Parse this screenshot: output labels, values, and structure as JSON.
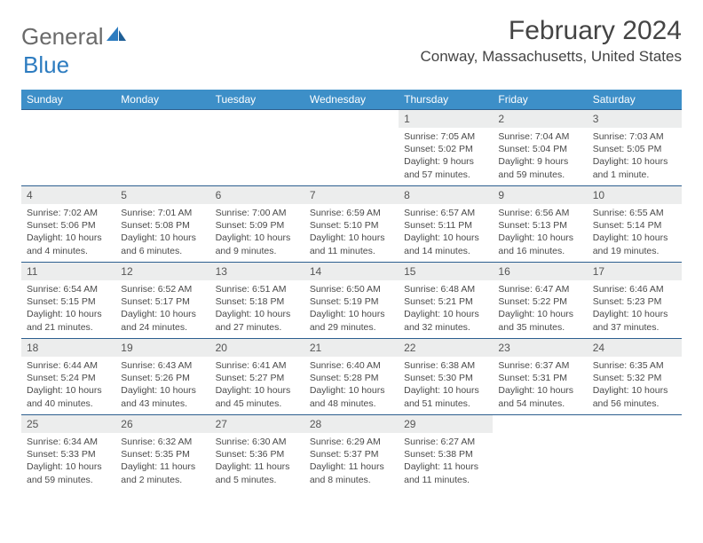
{
  "logo": {
    "word1": "General",
    "word2": "Blue"
  },
  "title": "February 2024",
  "location": "Conway, Massachusetts, United States",
  "colors": {
    "header_bg": "#3d8fc8",
    "header_text": "#ffffff",
    "row_border": "#2d5f8f",
    "daynum_bg": "#eceded",
    "text": "#4a4a4a",
    "logo_gray": "#6a6a6a",
    "logo_blue": "#2d7cc0"
  },
  "day_headers": [
    "Sunday",
    "Monday",
    "Tuesday",
    "Wednesday",
    "Thursday",
    "Friday",
    "Saturday"
  ],
  "weeks": [
    [
      null,
      null,
      null,
      null,
      {
        "n": "1",
        "sr": "Sunrise: 7:05 AM",
        "ss": "Sunset: 5:02 PM",
        "dl": "Daylight: 9 hours and 57 minutes."
      },
      {
        "n": "2",
        "sr": "Sunrise: 7:04 AM",
        "ss": "Sunset: 5:04 PM",
        "dl": "Daylight: 9 hours and 59 minutes."
      },
      {
        "n": "3",
        "sr": "Sunrise: 7:03 AM",
        "ss": "Sunset: 5:05 PM",
        "dl": "Daylight: 10 hours and 1 minute."
      }
    ],
    [
      {
        "n": "4",
        "sr": "Sunrise: 7:02 AM",
        "ss": "Sunset: 5:06 PM",
        "dl": "Daylight: 10 hours and 4 minutes."
      },
      {
        "n": "5",
        "sr": "Sunrise: 7:01 AM",
        "ss": "Sunset: 5:08 PM",
        "dl": "Daylight: 10 hours and 6 minutes."
      },
      {
        "n": "6",
        "sr": "Sunrise: 7:00 AM",
        "ss": "Sunset: 5:09 PM",
        "dl": "Daylight: 10 hours and 9 minutes."
      },
      {
        "n": "7",
        "sr": "Sunrise: 6:59 AM",
        "ss": "Sunset: 5:10 PM",
        "dl": "Daylight: 10 hours and 11 minutes."
      },
      {
        "n": "8",
        "sr": "Sunrise: 6:57 AM",
        "ss": "Sunset: 5:11 PM",
        "dl": "Daylight: 10 hours and 14 minutes."
      },
      {
        "n": "9",
        "sr": "Sunrise: 6:56 AM",
        "ss": "Sunset: 5:13 PM",
        "dl": "Daylight: 10 hours and 16 minutes."
      },
      {
        "n": "10",
        "sr": "Sunrise: 6:55 AM",
        "ss": "Sunset: 5:14 PM",
        "dl": "Daylight: 10 hours and 19 minutes."
      }
    ],
    [
      {
        "n": "11",
        "sr": "Sunrise: 6:54 AM",
        "ss": "Sunset: 5:15 PM",
        "dl": "Daylight: 10 hours and 21 minutes."
      },
      {
        "n": "12",
        "sr": "Sunrise: 6:52 AM",
        "ss": "Sunset: 5:17 PM",
        "dl": "Daylight: 10 hours and 24 minutes."
      },
      {
        "n": "13",
        "sr": "Sunrise: 6:51 AM",
        "ss": "Sunset: 5:18 PM",
        "dl": "Daylight: 10 hours and 27 minutes."
      },
      {
        "n": "14",
        "sr": "Sunrise: 6:50 AM",
        "ss": "Sunset: 5:19 PM",
        "dl": "Daylight: 10 hours and 29 minutes."
      },
      {
        "n": "15",
        "sr": "Sunrise: 6:48 AM",
        "ss": "Sunset: 5:21 PM",
        "dl": "Daylight: 10 hours and 32 minutes."
      },
      {
        "n": "16",
        "sr": "Sunrise: 6:47 AM",
        "ss": "Sunset: 5:22 PM",
        "dl": "Daylight: 10 hours and 35 minutes."
      },
      {
        "n": "17",
        "sr": "Sunrise: 6:46 AM",
        "ss": "Sunset: 5:23 PM",
        "dl": "Daylight: 10 hours and 37 minutes."
      }
    ],
    [
      {
        "n": "18",
        "sr": "Sunrise: 6:44 AM",
        "ss": "Sunset: 5:24 PM",
        "dl": "Daylight: 10 hours and 40 minutes."
      },
      {
        "n": "19",
        "sr": "Sunrise: 6:43 AM",
        "ss": "Sunset: 5:26 PM",
        "dl": "Daylight: 10 hours and 43 minutes."
      },
      {
        "n": "20",
        "sr": "Sunrise: 6:41 AM",
        "ss": "Sunset: 5:27 PM",
        "dl": "Daylight: 10 hours and 45 minutes."
      },
      {
        "n": "21",
        "sr": "Sunrise: 6:40 AM",
        "ss": "Sunset: 5:28 PM",
        "dl": "Daylight: 10 hours and 48 minutes."
      },
      {
        "n": "22",
        "sr": "Sunrise: 6:38 AM",
        "ss": "Sunset: 5:30 PM",
        "dl": "Daylight: 10 hours and 51 minutes."
      },
      {
        "n": "23",
        "sr": "Sunrise: 6:37 AM",
        "ss": "Sunset: 5:31 PM",
        "dl": "Daylight: 10 hours and 54 minutes."
      },
      {
        "n": "24",
        "sr": "Sunrise: 6:35 AM",
        "ss": "Sunset: 5:32 PM",
        "dl": "Daylight: 10 hours and 56 minutes."
      }
    ],
    [
      {
        "n": "25",
        "sr": "Sunrise: 6:34 AM",
        "ss": "Sunset: 5:33 PM",
        "dl": "Daylight: 10 hours and 59 minutes."
      },
      {
        "n": "26",
        "sr": "Sunrise: 6:32 AM",
        "ss": "Sunset: 5:35 PM",
        "dl": "Daylight: 11 hours and 2 minutes."
      },
      {
        "n": "27",
        "sr": "Sunrise: 6:30 AM",
        "ss": "Sunset: 5:36 PM",
        "dl": "Daylight: 11 hours and 5 minutes."
      },
      {
        "n": "28",
        "sr": "Sunrise: 6:29 AM",
        "ss": "Sunset: 5:37 PM",
        "dl": "Daylight: 11 hours and 8 minutes."
      },
      {
        "n": "29",
        "sr": "Sunrise: 6:27 AM",
        "ss": "Sunset: 5:38 PM",
        "dl": "Daylight: 11 hours and 11 minutes."
      },
      null,
      null
    ]
  ]
}
